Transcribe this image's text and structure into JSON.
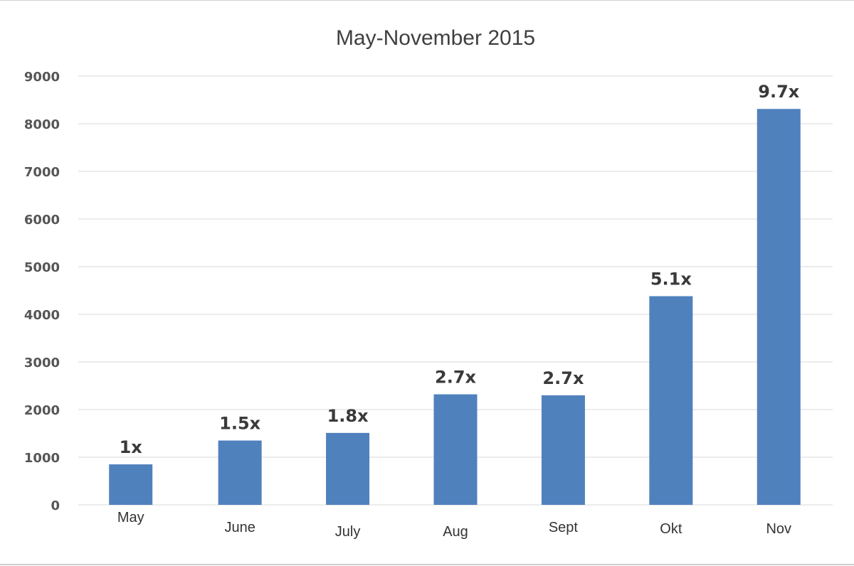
{
  "chart_data": {
    "type": "bar",
    "title": "May-November 2015",
    "xlabel": "",
    "ylabel": "",
    "categories": [
      "May",
      "June",
      "July",
      "Aug",
      "Sept",
      "Okt",
      "Nov"
    ],
    "values": [
      850,
      1350,
      1510,
      2320,
      2300,
      4380,
      8310
    ],
    "data_labels": [
      "1x",
      "1.5x",
      "1.8x",
      "2.7x",
      "2.7x",
      "5.1x",
      "9.7x"
    ],
    "ylim": [
      0,
      9000
    ],
    "yticks": [
      "0",
      "1000",
      "2000",
      "3000",
      "4000",
      "5000",
      "6000",
      "7000",
      "8000",
      "9000"
    ],
    "grid": true,
    "legend": "none",
    "bar_color": "#4f81bd"
  }
}
